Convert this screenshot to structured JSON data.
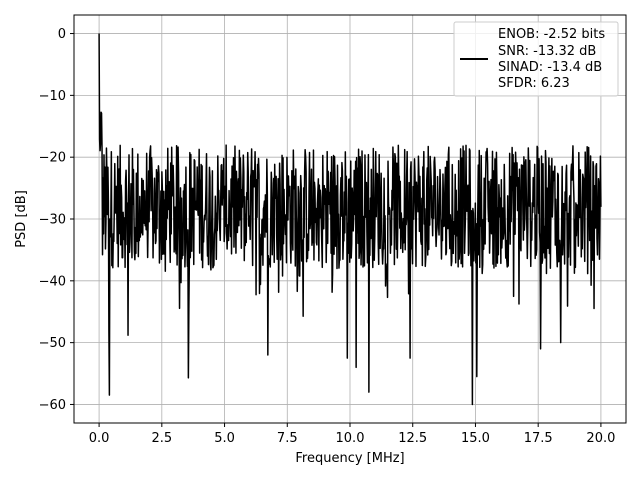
{
  "chart_data": {
    "type": "line",
    "xlabel": "Frequency [MHz]",
    "ylabel": "PSD [dB]",
    "xlim": [
      -1.0,
      21.0
    ],
    "ylim": [
      -63.0,
      3.0
    ],
    "grid": true,
    "legend_position": "top-right",
    "x_ticks": [
      0.0,
      2.5,
      5.0,
      7.5,
      10.0,
      12.5,
      15.0,
      17.5,
      20.0
    ],
    "x_tick_labels": [
      "0.0",
      "2.5",
      "5.0",
      "7.5",
      "10.0",
      "12.5",
      "15.0",
      "17.5",
      "20.0"
    ],
    "y_ticks": [
      0,
      -10,
      -20,
      -30,
      -40,
      -50,
      -60
    ],
    "y_tick_labels": [
      "0",
      "−10",
      "−20",
      "−30",
      "−40",
      "−50",
      "−60"
    ],
    "legend_lines": [
      "ENOB: -2.52 bits",
      "SNR: -13.32 dB",
      "SINAD: -13.4 dB",
      "SFDR: 6.23"
    ],
    "series": [
      {
        "color": "#000000",
        "x_range": [
          0.0,
          20.0
        ],
        "samples": 1024,
        "peak": {
          "x": 0.0,
          "y": 0.0
        },
        "noise_mean_db": -28,
        "noise_band_db": [
          -37,
          -18
        ],
        "spikes": [
          {
            "x": 0.42,
            "y": -58.5
          },
          {
            "x": 0.4,
            "y": -48.0
          },
          {
            "x": 1.15,
            "y": -48.8
          },
          {
            "x": 3.55,
            "y": -55.7
          },
          {
            "x": 6.72,
            "y": -52.0
          },
          {
            "x": 9.9,
            "y": -52.5
          },
          {
            "x": 10.25,
            "y": -54.0
          },
          {
            "x": 10.75,
            "y": -58.0
          },
          {
            "x": 12.4,
            "y": -52.5
          },
          {
            "x": 14.88,
            "y": -60.0
          },
          {
            "x": 15.05,
            "y": -55.5
          },
          {
            "x": 17.6,
            "y": -51.0
          },
          {
            "x": 18.4,
            "y": -50.0
          }
        ]
      }
    ]
  }
}
